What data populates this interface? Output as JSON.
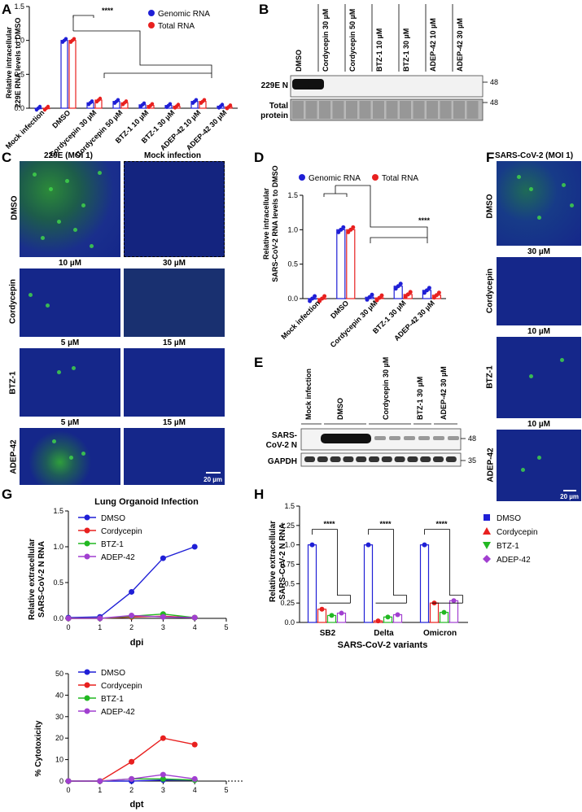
{
  "panels": {
    "A": "A",
    "B": "B",
    "C": "C",
    "D": "D",
    "E": "E",
    "F": "F",
    "G": "G",
    "H": "H"
  },
  "panelA": {
    "ylabel1": "Relative intracellular",
    "ylabel2": "229E RNA levels to DMSO",
    "legend": [
      "Genomic RNA",
      "Total RNA"
    ],
    "sig": "****",
    "colors": {
      "genomic": "#1f1fd6",
      "total": "#e8201f"
    },
    "chart_data": {
      "type": "bar",
      "categories": [
        "Mock infection",
        "DMSO",
        "Cordycepin 30 µM",
        "Cordycepin 50 µM",
        "BTZ-1 10 µM",
        "BTZ-1 30 µM",
        "ADEP-42 10 µM",
        "ADEP-42 30 µM"
      ],
      "series": [
        {
          "name": "Genomic RNA",
          "values": [
            0.0,
            1.0,
            0.08,
            0.1,
            0.05,
            0.04,
            0.1,
            0.03
          ]
        },
        {
          "name": "Total RNA",
          "values": [
            0.0,
            1.0,
            0.12,
            0.08,
            0.04,
            0.03,
            0.1,
            0.02
          ]
        }
      ],
      "ylim": [
        0,
        1.5
      ],
      "yticks": [
        "0.0",
        "0.5",
        "1.0",
        "1.5"
      ]
    }
  },
  "panelB": {
    "lanes": [
      "DMSO",
      "Cordycepin 30 µM",
      "Cordycepin 50 µM",
      "BTZ-1 10 µM",
      "BTZ-1 30 µM",
      "ADEP-42 10 µM",
      "ADEP-42 30 µM"
    ],
    "row1": "229E N",
    "row2a": "Total",
    "row2b": "protein",
    "mw1": "48",
    "mw2": "48"
  },
  "panelC": {
    "titles": [
      "229E (MOI 1)",
      "Mock infection"
    ],
    "row_labels": [
      "DMSO",
      "Cordycepin",
      "BTZ-1",
      "ADEP-42"
    ],
    "conc": [
      [
        "10 µM",
        "30 µM"
      ],
      [
        "5 µM",
        "15 µM"
      ],
      [
        "5 µM",
        "15 µM"
      ]
    ],
    "scale": "20 µm"
  },
  "panelD": {
    "ylabel1": "Relative intracellular",
    "ylabel2": "SARS-CoV-2 RNA levels to DMSO",
    "legend": [
      "Genomic RNA",
      "Total RNA"
    ],
    "sig": "****",
    "chart_data": {
      "type": "bar",
      "categories": [
        "Mock infection",
        "DMSO",
        "Cordycepin 30 µM",
        "BTZ-1 30 µM",
        "ADEP-42 30 µM"
      ],
      "series": [
        {
          "name": "Genomic RNA",
          "values": [
            0.0,
            1.0,
            0.02,
            0.18,
            0.12
          ]
        },
        {
          "name": "Total RNA",
          "values": [
            0.0,
            1.0,
            0.01,
            0.06,
            0.05
          ]
        }
      ],
      "ylim": [
        0,
        1.5
      ],
      "yticks": [
        "0.0",
        "0.5",
        "1.0",
        "1.5"
      ]
    }
  },
  "panelE": {
    "lanes": [
      "Mock infection",
      "DMSO",
      "Cordycepin 30 µM",
      "BTZ-1 30 µM",
      "ADEP-42 30 µM"
    ],
    "row1a": "SARS-",
    "row1b": "CoV-2 N",
    "row2": "GAPDH",
    "mw1": "48",
    "mw2": "35"
  },
  "panelF": {
    "title": "SARS-CoV-2 (MOI 1)",
    "row_labels": [
      "DMSO",
      "Cordycepin",
      "BTZ-1",
      "ADEP-42"
    ],
    "conc": [
      "30 µM",
      "10 µM",
      "10 µM"
    ],
    "scale": "20 µm"
  },
  "panelG1": {
    "title": "Lung Organoid Infection",
    "ylabel1": "Relative extracellular",
    "ylabel2": "SARS-CoV-2 N RNA",
    "xlabel": "dpi",
    "legend": [
      "DMSO",
      "Cordycepin",
      "BTZ-1",
      "ADEP-42"
    ],
    "chart_data": {
      "type": "line",
      "x": [
        0,
        1,
        2,
        3,
        4
      ],
      "series": [
        {
          "name": "DMSO",
          "values": [
            0.01,
            0.02,
            0.37,
            0.84,
            1.0
          ]
        },
        {
          "name": "Cordycepin",
          "values": [
            0.0,
            0.0,
            0.02,
            0.03,
            0.01
          ]
        },
        {
          "name": "BTZ-1",
          "values": [
            0.0,
            0.0,
            0.03,
            0.06,
            0.01
          ]
        },
        {
          "name": "ADEP-42",
          "values": [
            0.0,
            0.0,
            0.04,
            0.02,
            0.01
          ]
        }
      ],
      "xlim": [
        0,
        5
      ],
      "ylim": [
        0,
        1.5
      ],
      "xticks": [
        "0",
        "1",
        "2",
        "3",
        "4",
        "5"
      ],
      "yticks": [
        "0.0",
        "0.5",
        "1.0",
        "1.5"
      ]
    }
  },
  "panelG2": {
    "ylabel": "% Cytotoxicity",
    "xlabel": "dpt",
    "legend": [
      "DMSO",
      "Cordycepin",
      "BTZ-1",
      "ADEP-42"
    ],
    "chart_data": {
      "type": "line",
      "x": [
        0,
        1,
        2,
        3,
        4
      ],
      "series": [
        {
          "name": "DMSO",
          "values": [
            0,
            0,
            0,
            0.5,
            0.5
          ]
        },
        {
          "name": "Cordycepin",
          "values": [
            0,
            0,
            9,
            20,
            17
          ]
        },
        {
          "name": "BTZ-1",
          "values": [
            0,
            0,
            1,
            1,
            0.5
          ]
        },
        {
          "name": "ADEP-42",
          "values": [
            0,
            0,
            1,
            3,
            1
          ]
        }
      ],
      "xlim": [
        0,
        5
      ],
      "ylim": [
        0,
        50
      ],
      "xticks": [
        "0",
        "1",
        "2",
        "3",
        "4",
        "5"
      ],
      "yticks": [
        "0",
        "10",
        "20",
        "30",
        "40",
        "50"
      ]
    }
  },
  "panelH": {
    "ylabel1": "Relative extracellular",
    "ylabel2": "SARS-CoV-2 N RNA",
    "xlabel": "SARS-CoV-2 variants",
    "legend": [
      "DMSO",
      "Cordycepin",
      "BTZ-1",
      "ADEP-42"
    ],
    "sig": "****",
    "chart_data": {
      "type": "bar",
      "categories": [
        "SB2",
        "Delta",
        "Omicron"
      ],
      "series": [
        {
          "name": "DMSO",
          "values": [
            1.0,
            1.0,
            1.0
          ]
        },
        {
          "name": "Cordycepin",
          "values": [
            0.17,
            0.02,
            0.25
          ]
        },
        {
          "name": "BTZ-1",
          "values": [
            0.09,
            0.07,
            0.13
          ]
        },
        {
          "name": "ADEP-42",
          "values": [
            0.12,
            0.1,
            0.28
          ]
        }
      ],
      "ylim": [
        0,
        1.5
      ],
      "yticks": [
        "0.0",
        "0.25",
        "0.5",
        "0.75",
        "1.0",
        "1.25",
        "1.5"
      ]
    }
  },
  "series_colors": {
    "DMSO": "#1f1fd6",
    "Cordycepin": "#e8201f",
    "BTZ-1": "#22b822",
    "ADEP-42": "#a13fd0"
  }
}
